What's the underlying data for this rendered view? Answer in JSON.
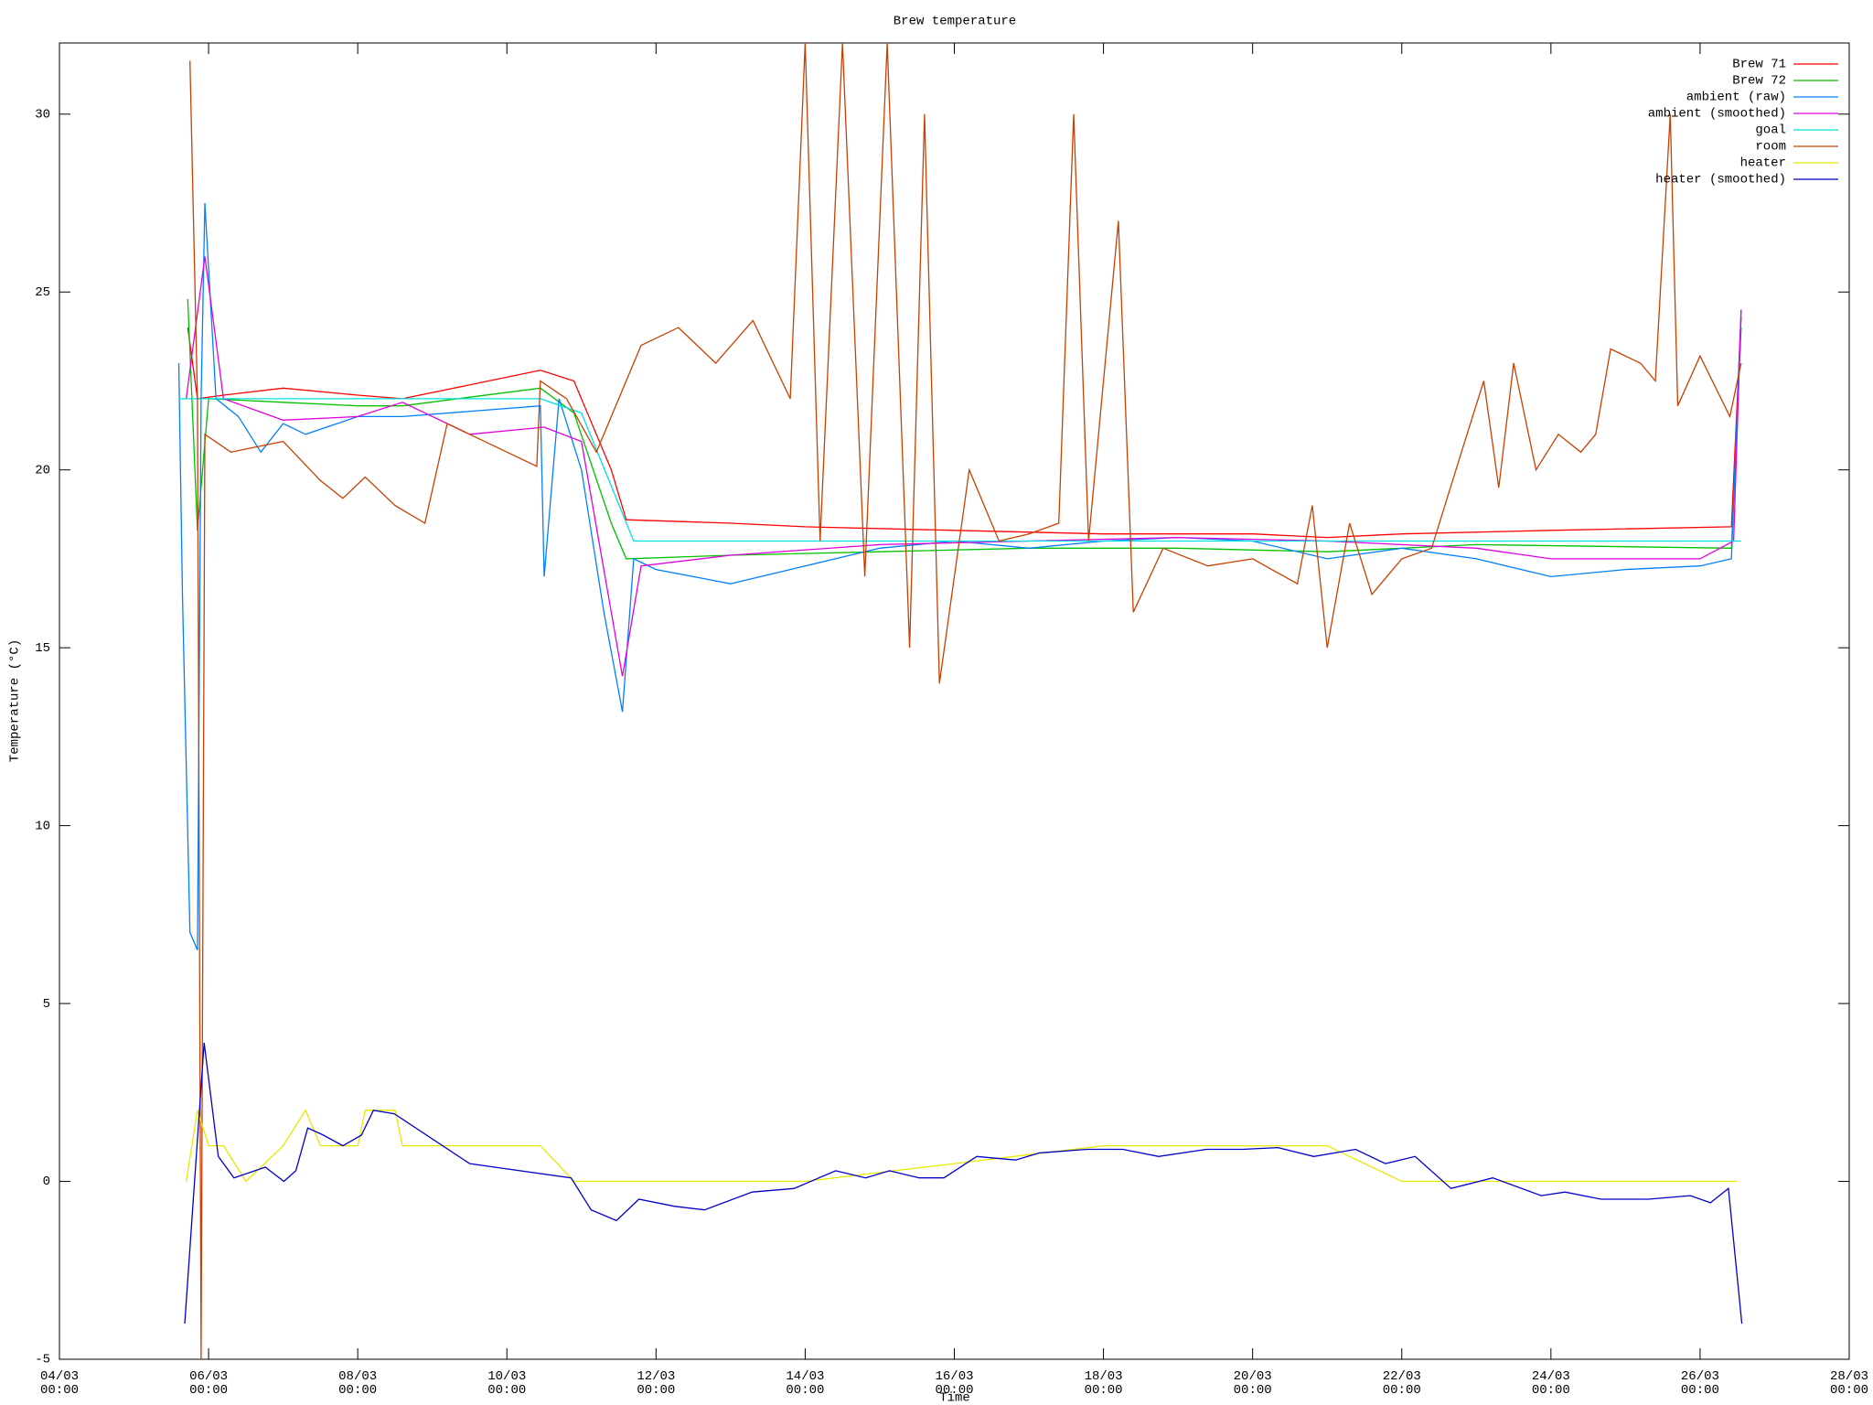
{
  "chart_data": {
    "type": "line",
    "title": "Brew temperature",
    "x_label": "Time",
    "y_label": "Temperature (°C)",
    "xlim": [
      4,
      28
    ],
    "ylim": [
      -5,
      32
    ],
    "xticks": [
      {
        "value": 4,
        "label": "04/03\n00:00"
      },
      {
        "value": 6,
        "label": "06/03\n00:00"
      },
      {
        "value": 8,
        "label": "08/03\n00:00"
      },
      {
        "value": 10,
        "label": "10/03\n00:00"
      },
      {
        "value": 12,
        "label": "12/03\n00:00"
      },
      {
        "value": 14,
        "label": "14/03\n00:00"
      },
      {
        "value": 16,
        "label": "16/03\n00:00"
      },
      {
        "value": 18,
        "label": "18/03\n00:00"
      },
      {
        "value": 20,
        "label": "20/03\n00:00"
      },
      {
        "value": 22,
        "label": "22/03\n00:00"
      },
      {
        "value": 24,
        "label": "24/03\n00:00"
      },
      {
        "value": 26,
        "label": "26/03\n00:00"
      },
      {
        "value": 28,
        "label": "28/03\n00:00"
      }
    ],
    "yticks": [
      -5,
      0,
      5,
      10,
      15,
      20,
      25,
      30
    ],
    "legend": "top-right",
    "series": [
      {
        "name": "Brew 71",
        "color": "#ff0000",
        "x": [
          5.72,
          5.85,
          6.2,
          7,
          8,
          8.6,
          10.45,
          10.9,
          11.4,
          11.6,
          13,
          14,
          16,
          18,
          20,
          21,
          22,
          24,
          26.42,
          26.55
        ],
        "values": [
          24,
          22.0,
          22.1,
          22.3,
          22.1,
          22.0,
          22.8,
          22.5,
          20.0,
          18.6,
          18.5,
          18.4,
          18.3,
          18.2,
          18.2,
          18.1,
          18.2,
          18.3,
          18.4,
          24.3
        ]
      },
      {
        "name": "Brew 72",
        "color": "#00c000",
        "x": [
          5.72,
          5.85,
          6,
          7,
          8,
          8.6,
          10.45,
          10.9,
          11.4,
          11.6,
          13,
          15,
          17,
          19,
          21,
          23,
          26.42,
          26.55
        ],
        "values": [
          24.8,
          18.3,
          22.0,
          21.9,
          21.8,
          21.8,
          22.3,
          21.6,
          18.5,
          17.5,
          17.6,
          17.7,
          17.8,
          17.8,
          17.7,
          17.9,
          17.8,
          24.0
        ]
      },
      {
        "name": "ambient (raw)",
        "color": "#0080ff",
        "x": [
          5.6,
          5.65,
          5.75,
          5.85,
          5.9,
          5.95,
          6.1,
          6.4,
          6.7,
          7,
          7.3,
          8,
          8.6,
          10.45,
          10.5,
          10.7,
          11.0,
          11.3,
          11.55,
          11.7,
          12,
          13,
          14,
          15,
          16,
          17,
          18,
          19,
          20,
          21,
          22,
          23,
          24,
          25,
          26,
          26.42,
          26.55
        ],
        "values": [
          23,
          16.5,
          7,
          6.5,
          22,
          27.5,
          22,
          21.5,
          20.5,
          21.3,
          21,
          21.5,
          21.5,
          21.8,
          17,
          22,
          20,
          16,
          13.2,
          17.5,
          17.2,
          16.8,
          17.3,
          17.8,
          18.0,
          17.8,
          18.0,
          18.1,
          18.0,
          17.5,
          17.8,
          17.5,
          17.0,
          17.2,
          17.3,
          17.5,
          24.5
        ]
      },
      {
        "name": "ambient (smoothed)",
        "color": "#e000e0",
        "x": [
          5.7,
          5.95,
          6.2,
          7,
          8,
          8.6,
          9.5,
          10.5,
          11,
          11.55,
          11.8,
          13,
          15,
          17,
          19,
          21,
          23,
          24,
          26,
          26.45,
          26.55
        ],
        "values": [
          22,
          26,
          22,
          21.4,
          21.5,
          21.9,
          21,
          21.2,
          20.8,
          14.2,
          17.3,
          17.6,
          17.9,
          18.0,
          18.1,
          18.0,
          17.8,
          17.5,
          17.5,
          18,
          24.5
        ]
      },
      {
        "name": "goal",
        "color": "#00e0e0",
        "x": [
          5.6,
          8.6,
          10.45,
          11.0,
          11.7,
          26.55
        ],
        "values": [
          22,
          22,
          22,
          21.6,
          18.0,
          18.0
        ]
      },
      {
        "name": "room",
        "color": "#c84000",
        "x": [
          5.75,
          5.85,
          5.9,
          5.95,
          6.3,
          7,
          7.5,
          7.8,
          8.1,
          8.5,
          8.9,
          9.2,
          10.4,
          10.45,
          10.8,
          11.2,
          11.8,
          12.3,
          12.8,
          13.3,
          13.8,
          14,
          14.2,
          14.5,
          14.8,
          15.1,
          15.4,
          15.6,
          15.8,
          16.2,
          16.6,
          17,
          17.4,
          17.6,
          17.8,
          18.2,
          18.4,
          18.8,
          19.4,
          20,
          20.6,
          20.8,
          21,
          21.3,
          21.6,
          22,
          22.4,
          22.8,
          23.1,
          23.3,
          23.5,
          23.8,
          24.1,
          24.4,
          24.6,
          24.8,
          25.2,
          25.4,
          25.6,
          25.7,
          26.0,
          26.4,
          26.55
        ],
        "values": [
          31.5,
          22,
          -5,
          21,
          20.5,
          20.8,
          19.7,
          19.2,
          19.8,
          19.0,
          18.5,
          21.3,
          20.1,
          22.5,
          22,
          20.5,
          23.5,
          24,
          23,
          24.2,
          22,
          32,
          18,
          32,
          17,
          32,
          15,
          30,
          14,
          20,
          18,
          18.2,
          18.5,
          30,
          18,
          27,
          16,
          17.8,
          17.3,
          17.5,
          16.8,
          19,
          15,
          18.5,
          16.5,
          17.5,
          17.8,
          20.5,
          22.5,
          19.5,
          23,
          20,
          21.0,
          20.5,
          21,
          23.4,
          23,
          22.5,
          30,
          21.8,
          23.2,
          21.5,
          23.0
        ]
      },
      {
        "name": "heater",
        "color": "#e8e800",
        "x": [
          5.7,
          5.85,
          6.0,
          6.2,
          6.5,
          7.0,
          7.3,
          7.5,
          8.0,
          8.1,
          8.5,
          8.6,
          10.45,
          10.9,
          12,
          14,
          16,
          18,
          20,
          21,
          22,
          24,
          26.5
        ],
        "values": [
          0,
          2,
          1,
          1,
          0,
          1,
          2,
          1,
          1,
          2,
          2,
          1,
          1,
          0,
          0,
          0,
          0.5,
          1,
          1,
          1,
          0,
          0,
          0
        ]
      },
      {
        "name": "heater (smoothed)",
        "color": "#0000cc",
        "x": [
          5.68,
          5.94,
          6.13,
          6.34,
          6.76,
          7.01,
          7.17,
          7.33,
          7.54,
          7.8,
          8.05,
          8.21,
          8.49,
          9.5,
          10.86,
          11.13,
          11.47,
          11.77,
          12.25,
          12.65,
          13.29,
          13.85,
          14.41,
          14.81,
          15.13,
          15.53,
          15.86,
          16.3,
          16.82,
          17.14,
          17.78,
          18.26,
          18.74,
          19.38,
          19.86,
          20.34,
          20.82,
          21.38,
          21.78,
          22.18,
          22.66,
          23.22,
          23.87,
          24.19,
          24.67,
          25.31,
          25.87,
          26.14,
          26.38,
          26.56
        ],
        "values": [
          -4,
          3.9,
          0.7,
          0.1,
          0.4,
          0.0,
          0.3,
          1.5,
          1.3,
          1.0,
          1.3,
          2,
          1.9,
          0.5,
          0.1,
          -0.8,
          -1.1,
          -0.5,
          -0.7,
          -0.8,
          -0.3,
          -0.2,
          0.3,
          0.1,
          0.3,
          0.1,
          0.1,
          0.7,
          0.6,
          0.8,
          0.9,
          0.9,
          0.7,
          0.9,
          0.9,
          0.95,
          0.7,
          0.9,
          0.5,
          0.7,
          -0.2,
          0.1,
          -0.4,
          -0.3,
          -0.5,
          -0.5,
          -0.4,
          -0.6,
          -0.2,
          -4
        ]
      }
    ]
  }
}
